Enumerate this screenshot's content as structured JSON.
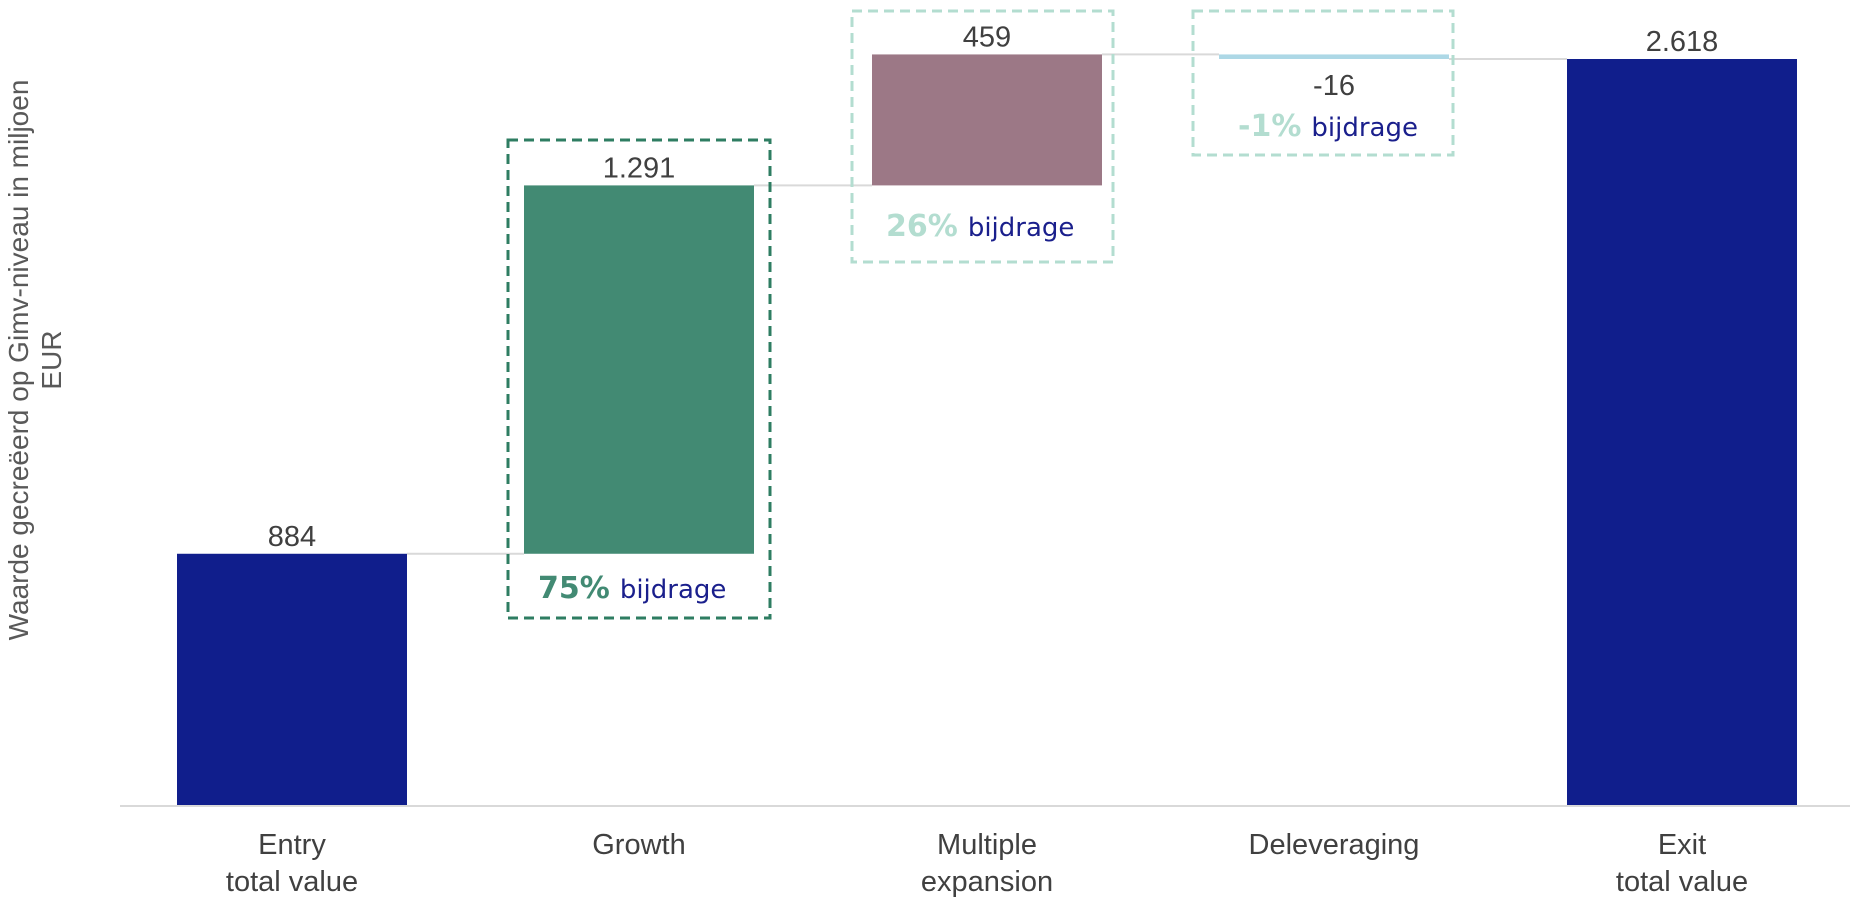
{
  "colors": {
    "total": "#101e8c",
    "growth": "#428a73",
    "multiple": "#9c7886",
    "deleveraging": "#add8e6",
    "box_dark": "#2e7d62",
    "box_light": "#b3ddd0",
    "axis": "#d9d9d9",
    "text": "#404040",
    "blue_text": "#1a1f8c"
  },
  "chart_data": {
    "type": "waterfall",
    "ylabel": "Waarde gecreëerd op Gimv-niveau in miljoen EUR",
    "categories": [
      "Entry\ntotal value",
      "Growth",
      "Multiple\nexpansion",
      "Deleveraging",
      "Exit\ntotal value"
    ],
    "values": [
      884,
      1291,
      459,
      -16,
      2618
    ],
    "value_labels": [
      "884",
      "1.291",
      "459",
      "-16",
      "2.618"
    ],
    "kinds": [
      "total",
      "delta",
      "delta",
      "delta",
      "total"
    ],
    "contributions": [
      {
        "category": "Growth",
        "percent": "75%",
        "text": "bijdrage"
      },
      {
        "category": "Multiple\nexpansion",
        "percent": "26%",
        "text": "bijdrage"
      },
      {
        "category": "Deleveraging",
        "percent": "-1%",
        "text": "bijdrage"
      }
    ],
    "ylim": [
      0,
      2640
    ],
    "grid": false,
    "legend": "none"
  }
}
